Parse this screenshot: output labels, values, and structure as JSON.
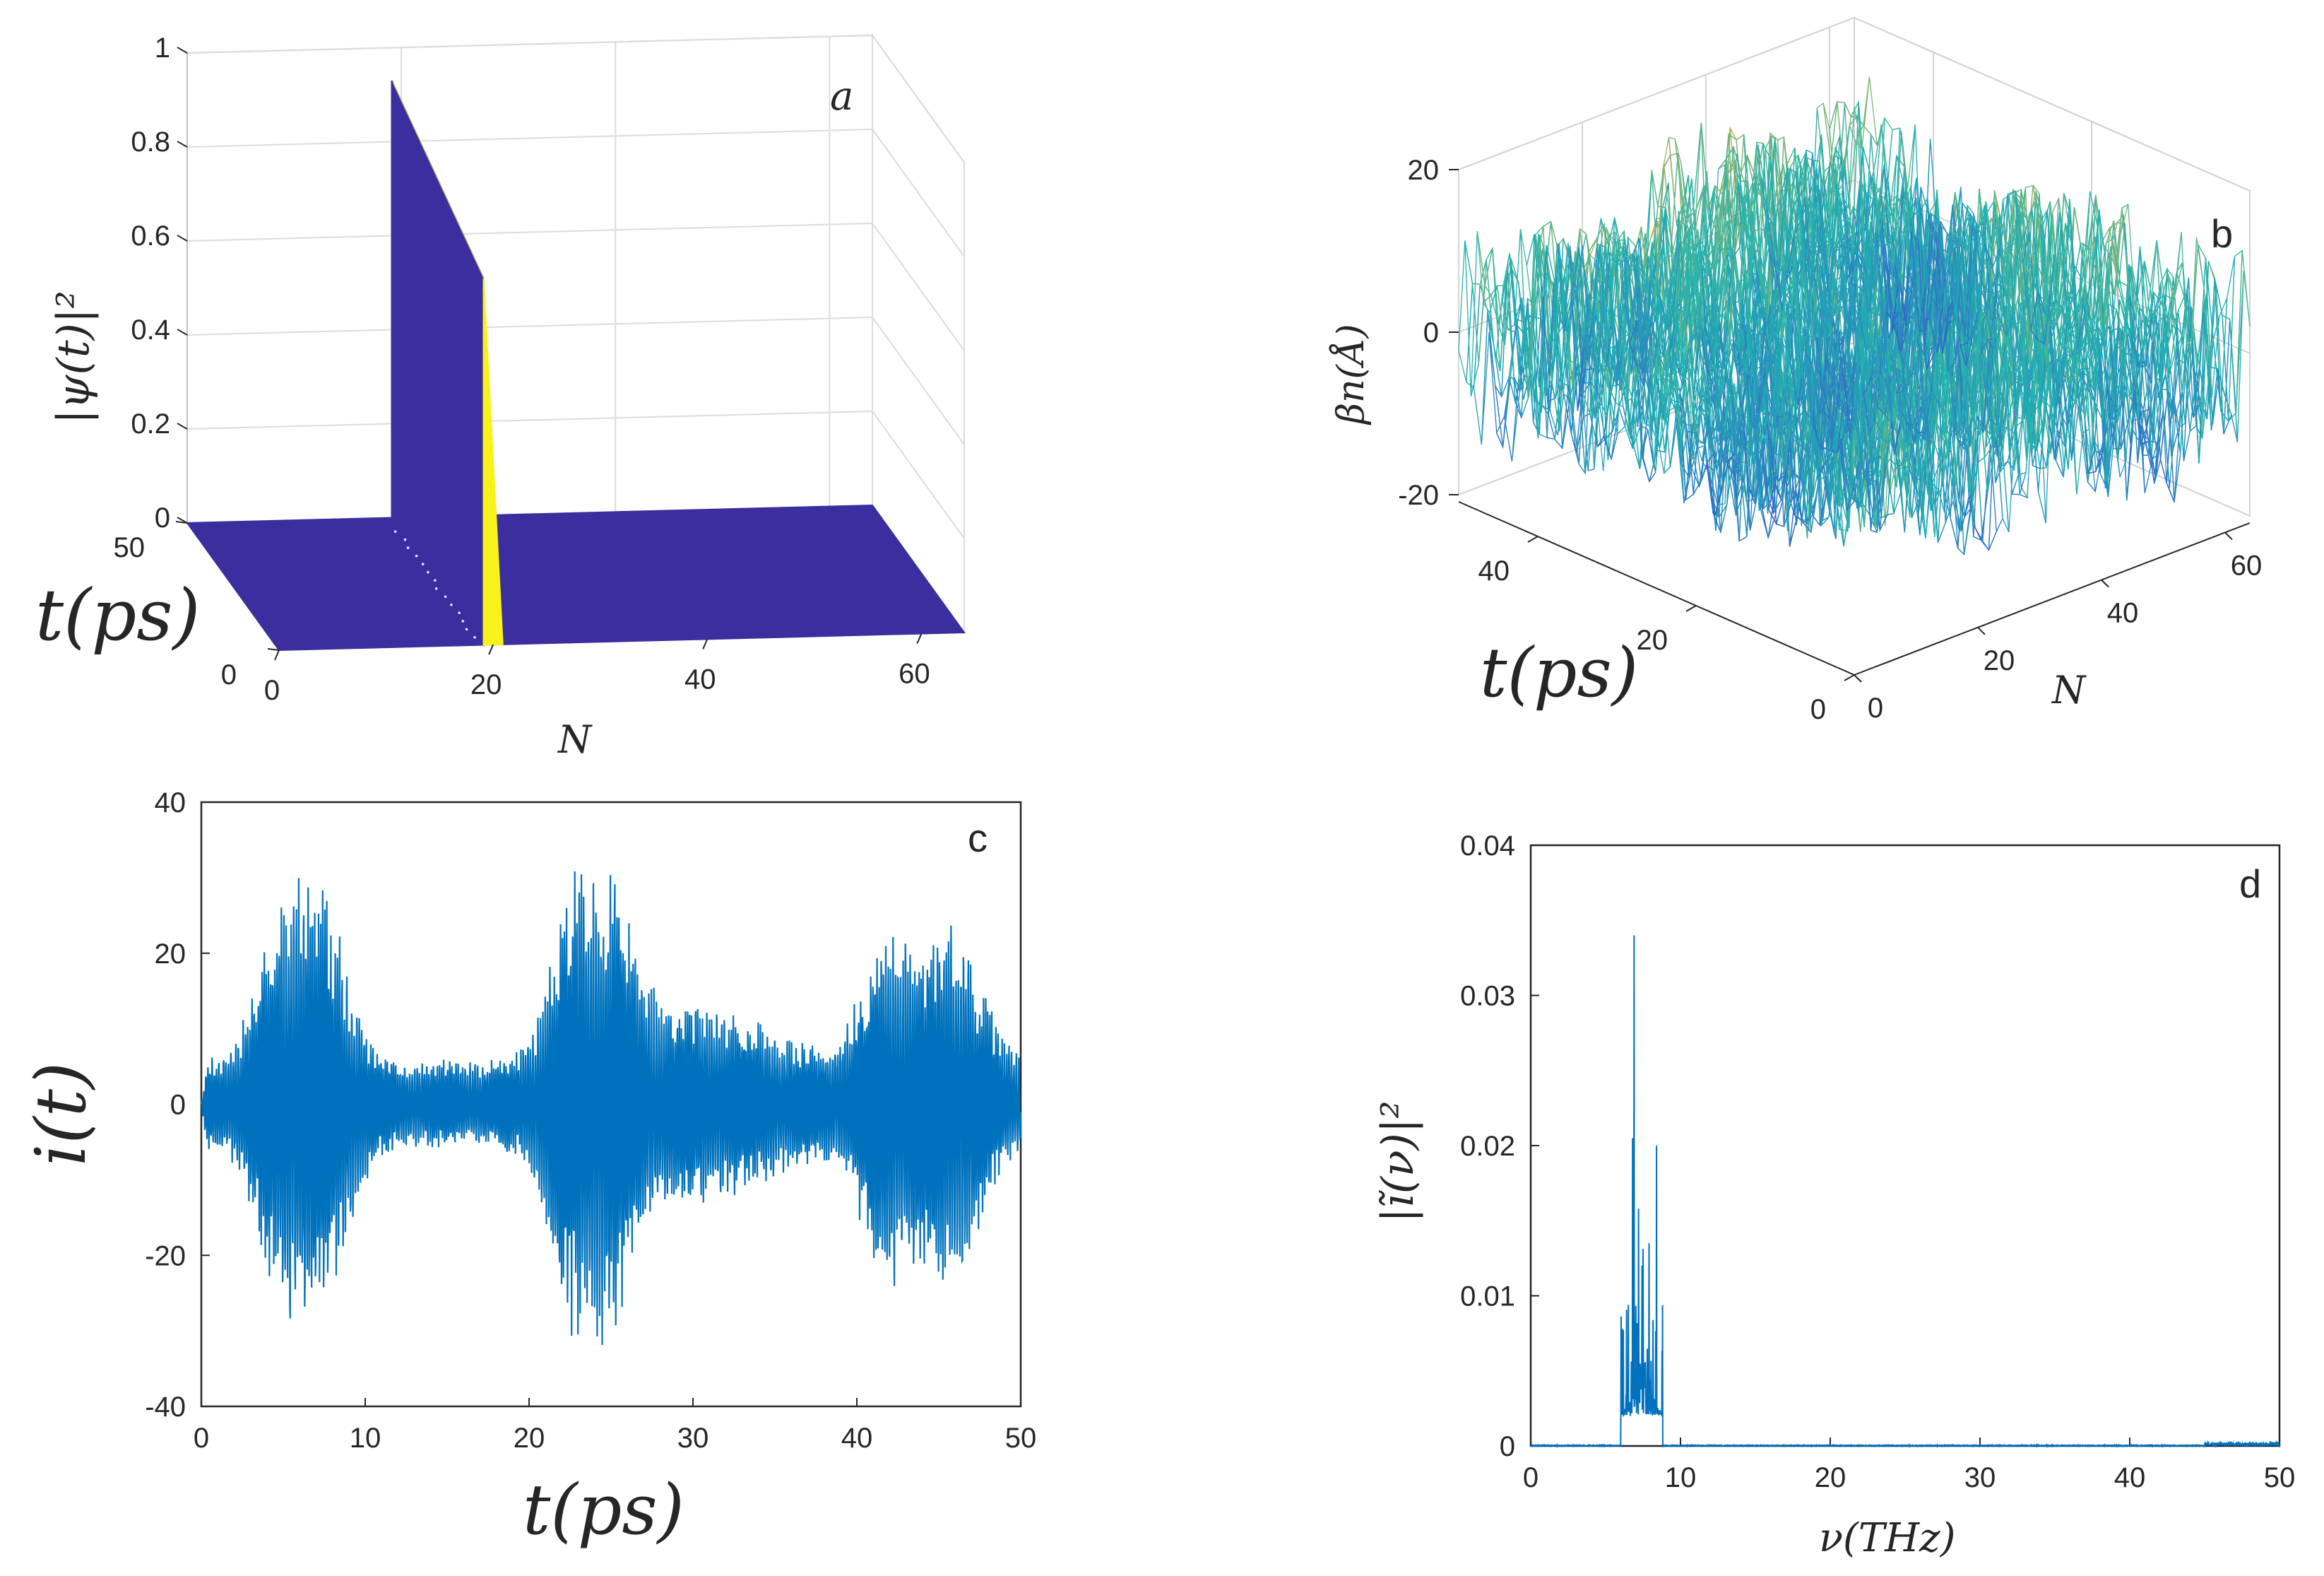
{
  "chart_data": [
    {
      "id": "a",
      "type": "surface3d",
      "panel_label": "a",
      "zlabel": "|ψ(t)|²",
      "xlabel": "N",
      "ylabel": "t(ps)",
      "x_ticks": [
        "0",
        "20",
        "40",
        "60"
      ],
      "y_ticks": [
        "0",
        "50"
      ],
      "z_ticks": [
        "0",
        "0.2",
        "0.4",
        "0.6",
        "0.8",
        "1"
      ],
      "xlim": [
        0,
        64
      ],
      "ylim": [
        0,
        50
      ],
      "zlim": [
        0,
        1
      ],
      "peak": {
        "N": 20,
        "value_start": 0.93,
        "value_end": 0.78
      },
      "colors": {
        "base": "#3b2e9e",
        "high": "#f7f21a"
      }
    },
    {
      "id": "b",
      "type": "surface3d",
      "panel_label": "b",
      "zlabel": "βn(Å)",
      "xlabel": "N",
      "ylabel": "t(ps)",
      "x_ticks": [
        "0",
        "20",
        "40",
        "60"
      ],
      "y_ticks": [
        "0",
        "20",
        "40"
      ],
      "z_ticks": [
        "-20",
        "0",
        "20"
      ],
      "xlim": [
        0,
        64
      ],
      "ylim": [
        0,
        50
      ],
      "zlim": [
        -20,
        20
      ],
      "colors": {
        "low": "#3d43d6",
        "mid": "#20b4b0",
        "high": "#f2b43a"
      }
    },
    {
      "id": "c",
      "type": "line",
      "panel_label": "c",
      "xlabel": "t(ps)",
      "ylabel": "i(t)",
      "x_ticks": [
        "0",
        "10",
        "20",
        "30",
        "40",
        "50"
      ],
      "y_ticks": [
        "-40",
        "-20",
        "0",
        "20",
        "40"
      ],
      "xlim": [
        0,
        50
      ],
      "ylim": [
        -40,
        40
      ],
      "signal": {
        "amplitude_peak": 32,
        "envelope_peaks_ps": [
          5,
          7.5,
          23,
          24.5,
          42,
          46
        ],
        "min_value": -35,
        "max_value": 32
      },
      "color": "#0072bd"
    },
    {
      "id": "d",
      "type": "line",
      "panel_label": "d",
      "xlabel": "ν(THz)",
      "ylabel": "|ĩ(ν)|²",
      "x_ticks": [
        "0",
        "10",
        "20",
        "30",
        "40",
        "50"
      ],
      "y_ticks": [
        "0",
        "0.01",
        "0.02",
        "0.03",
        "0.04"
      ],
      "xlim": [
        0,
        50
      ],
      "ylim": [
        0,
        0.04
      ],
      "peaks": [
        {
          "nu": 6.9,
          "value": 0.034
        },
        {
          "nu": 6.8,
          "value": 0.0205
        },
        {
          "nu": 8.4,
          "value": 0.02
        },
        {
          "nu": 7.2,
          "value": 0.0158
        },
        {
          "nu": 7.9,
          "value": 0.0135
        }
      ],
      "color": "#0072bd"
    }
  ]
}
